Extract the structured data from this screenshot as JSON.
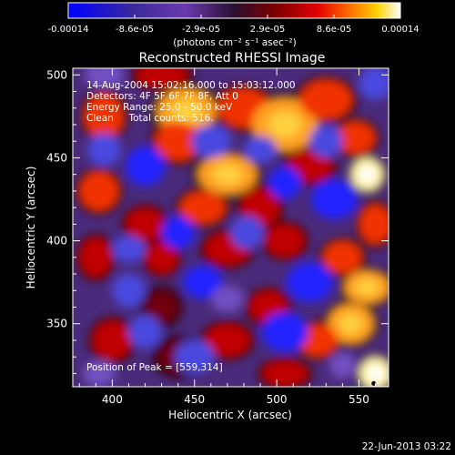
{
  "chart_data": {
    "type": "heatmap",
    "title": "Reconstructed RHESSI Image",
    "xlabel": "Heliocentric X (arcsec)",
    "ylabel": "Heliocentric Y (arcsec)",
    "x_ticks": [
      400,
      450,
      500,
      550
    ],
    "y_ticks": [
      350,
      400,
      450,
      500
    ],
    "xlim": [
      376,
      568
    ],
    "ylim": [
      312,
      504
    ],
    "colorbar": {
      "min": -0.00014,
      "max": 0.00014,
      "tick_labels": [
        "-0.00014",
        "-8.6e-05",
        "-2.9e-05",
        "2.9e-05",
        "8.6e-05",
        "0.00014"
      ],
      "unit_label": "(photons cm⁻² s⁻¹ asec⁻²)",
      "colors": [
        "#0000ff",
        "#3b2a9a",
        "#6a3ab0",
        "#2a1030",
        "#7a0000",
        "#e00000",
        "#ff7000",
        "#ffd000",
        "#ffffff"
      ]
    },
    "annotations": [
      "14-Aug-2004 15:02:16.000 to 15:03:12.000",
      "Detectors: 4F 5F 6F 7F 8F, Att 0",
      "Energy Range: 25.0 - 50.0 keV",
      "Clean     Total counts: 516."
    ],
    "peak_label": "Position of Peak = [559,314]",
    "peak": [
      559,
      314
    ],
    "blobs": [
      {
        "x": 445,
        "y": 478,
        "v": 0.9,
        "rx": 18,
        "ry": 14
      },
      {
        "x": 440,
        "y": 460,
        "v": 0.75,
        "rx": 14,
        "ry": 12
      },
      {
        "x": 430,
        "y": 500,
        "v": 0.55,
        "rx": 16,
        "ry": 8
      },
      {
        "x": 480,
        "y": 480,
        "v": 0.6,
        "rx": 16,
        "ry": 12
      },
      {
        "x": 505,
        "y": 470,
        "v": 0.85,
        "rx": 20,
        "ry": 16
      },
      {
        "x": 530,
        "y": 485,
        "v": 0.7,
        "rx": 16,
        "ry": 12
      },
      {
        "x": 548,
        "y": 462,
        "v": 0.6,
        "rx": 12,
        "ry": 10
      },
      {
        "x": 555,
        "y": 440,
        "v": 0.95,
        "rx": 10,
        "ry": 10
      },
      {
        "x": 520,
        "y": 445,
        "v": 0.5,
        "rx": 14,
        "ry": 10
      },
      {
        "x": 470,
        "y": 440,
        "v": 0.8,
        "rx": 18,
        "ry": 12
      },
      {
        "x": 455,
        "y": 420,
        "v": 0.6,
        "rx": 14,
        "ry": 10
      },
      {
        "x": 490,
        "y": 420,
        "v": 0.5,
        "rx": 12,
        "ry": 12
      },
      {
        "x": 560,
        "y": 410,
        "v": 0.7,
        "rx": 10,
        "ry": 12
      },
      {
        "x": 395,
        "y": 475,
        "v": 0.65,
        "rx": 12,
        "ry": 14
      },
      {
        "x": 392,
        "y": 430,
        "v": 0.6,
        "rx": 12,
        "ry": 12
      },
      {
        "x": 420,
        "y": 410,
        "v": 0.55,
        "rx": 12,
        "ry": 10
      },
      {
        "x": 390,
        "y": 390,
        "v": 0.5,
        "rx": 10,
        "ry": 12
      },
      {
        "x": 430,
        "y": 390,
        "v": 0.45,
        "rx": 10,
        "ry": 10
      },
      {
        "x": 470,
        "y": 395,
        "v": 0.55,
        "rx": 14,
        "ry": 10
      },
      {
        "x": 505,
        "y": 400,
        "v": 0.45,
        "rx": 12,
        "ry": 10
      },
      {
        "x": 540,
        "y": 390,
        "v": 0.65,
        "rx": 12,
        "ry": 10
      },
      {
        "x": 555,
        "y": 372,
        "v": 0.9,
        "rx": 14,
        "ry": 10
      },
      {
        "x": 545,
        "y": 350,
        "v": 0.85,
        "rx": 14,
        "ry": 12
      },
      {
        "x": 525,
        "y": 340,
        "v": 0.7,
        "rx": 12,
        "ry": 10
      },
      {
        "x": 560,
        "y": 320,
        "v": 1.0,
        "rx": 10,
        "ry": 10
      },
      {
        "x": 495,
        "y": 360,
        "v": 0.5,
        "rx": 12,
        "ry": 10
      },
      {
        "x": 470,
        "y": 340,
        "v": 0.45,
        "rx": 14,
        "ry": 10
      },
      {
        "x": 440,
        "y": 330,
        "v": 0.4,
        "rx": 12,
        "ry": 10
      },
      {
        "x": 400,
        "y": 340,
        "v": 0.5,
        "rx": 12,
        "ry": 12
      },
      {
        "x": 430,
        "y": 360,
        "v": 0.35,
        "rx": 10,
        "ry": 10
      },
      {
        "x": 505,
        "y": 320,
        "v": 0.55,
        "rx": 14,
        "ry": 8
      },
      {
        "x": 420,
        "y": 445,
        "v": -0.9,
        "rx": 12,
        "ry": 12
      },
      {
        "x": 395,
        "y": 455,
        "v": -0.6,
        "rx": 10,
        "ry": 10
      },
      {
        "x": 460,
        "y": 460,
        "v": -0.6,
        "rx": 12,
        "ry": 10
      },
      {
        "x": 490,
        "y": 455,
        "v": -0.55,
        "rx": 10,
        "ry": 8
      },
      {
        "x": 530,
        "y": 460,
        "v": -0.6,
        "rx": 10,
        "ry": 10
      },
      {
        "x": 535,
        "y": 425,
        "v": -0.8,
        "rx": 14,
        "ry": 12
      },
      {
        "x": 505,
        "y": 435,
        "v": -0.95,
        "rx": 10,
        "ry": 10
      },
      {
        "x": 482,
        "y": 405,
        "v": -0.7,
        "rx": 10,
        "ry": 10
      },
      {
        "x": 440,
        "y": 405,
        "v": -0.85,
        "rx": 10,
        "ry": 10
      },
      {
        "x": 410,
        "y": 395,
        "v": -0.7,
        "rx": 10,
        "ry": 8
      },
      {
        "x": 410,
        "y": 370,
        "v": -0.55,
        "rx": 10,
        "ry": 10
      },
      {
        "x": 455,
        "y": 375,
        "v": -0.75,
        "rx": 12,
        "ry": 10
      },
      {
        "x": 470,
        "y": 365,
        "v": -0.5,
        "rx": 10,
        "ry": 8
      },
      {
        "x": 520,
        "y": 375,
        "v": -0.8,
        "rx": 14,
        "ry": 12
      },
      {
        "x": 505,
        "y": 345,
        "v": -0.95,
        "rx": 14,
        "ry": 12
      },
      {
        "x": 450,
        "y": 330,
        "v": -0.6,
        "rx": 12,
        "ry": 10
      },
      {
        "x": 420,
        "y": 345,
        "v": -0.6,
        "rx": 10,
        "ry": 10
      },
      {
        "x": 392,
        "y": 320,
        "v": -0.45,
        "rx": 10,
        "ry": 8
      },
      {
        "x": 540,
        "y": 325,
        "v": -0.5,
        "rx": 8,
        "ry": 8
      },
      {
        "x": 395,
        "y": 500,
        "v": -0.4,
        "rx": 12,
        "ry": 8
      },
      {
        "x": 560,
        "y": 495,
        "v": -0.55,
        "rx": 10,
        "ry": 10
      }
    ]
  },
  "footer": {
    "date": "22-Jun-2013 03:22"
  }
}
